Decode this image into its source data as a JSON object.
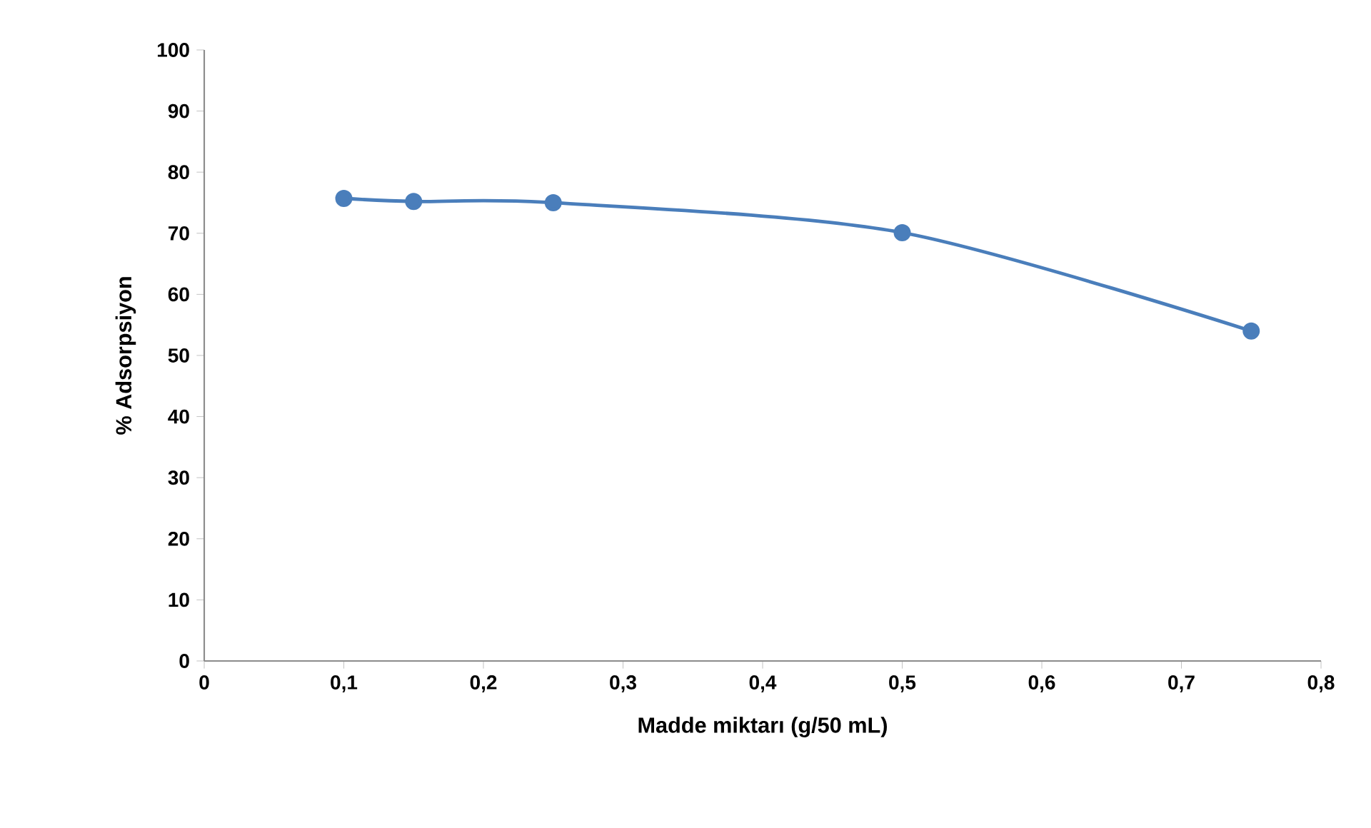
{
  "chart_data": {
    "type": "line",
    "xlabel": "Madde miktarı (g/50 mL)",
    "ylabel": "% Adsorpsiyon",
    "x": [
      0.1,
      0.15,
      0.25,
      0.5,
      0.75
    ],
    "series": [
      {
        "color": "#4a7ebb",
        "values": [
          75.7,
          75.2,
          75.0,
          70.1,
          54.0
        ]
      }
    ],
    "xlim": [
      0,
      0.8
    ],
    "xticks": [
      0,
      {
        "value": 0.1,
        "label": "0,1"
      },
      {
        "value": 0.2,
        "label": "0,2"
      },
      {
        "value": 0.3,
        "label": "0,3"
      },
      {
        "value": 0.4,
        "label": "0,4"
      },
      {
        "value": 0.5,
        "label": "0,5"
      },
      {
        "value": 0.6,
        "label": "0,6"
      },
      {
        "value": 0.7,
        "label": "0,7"
      },
      {
        "value": 0.8,
        "label": "0,8"
      }
    ],
    "ylim": [
      0,
      100
    ],
    "yticks": [
      0,
      10,
      20,
      30,
      40,
      50,
      60,
      70,
      80,
      90,
      100
    ],
    "grid": false,
    "legend": false,
    "marker": "circle",
    "line_style": "solid"
  }
}
